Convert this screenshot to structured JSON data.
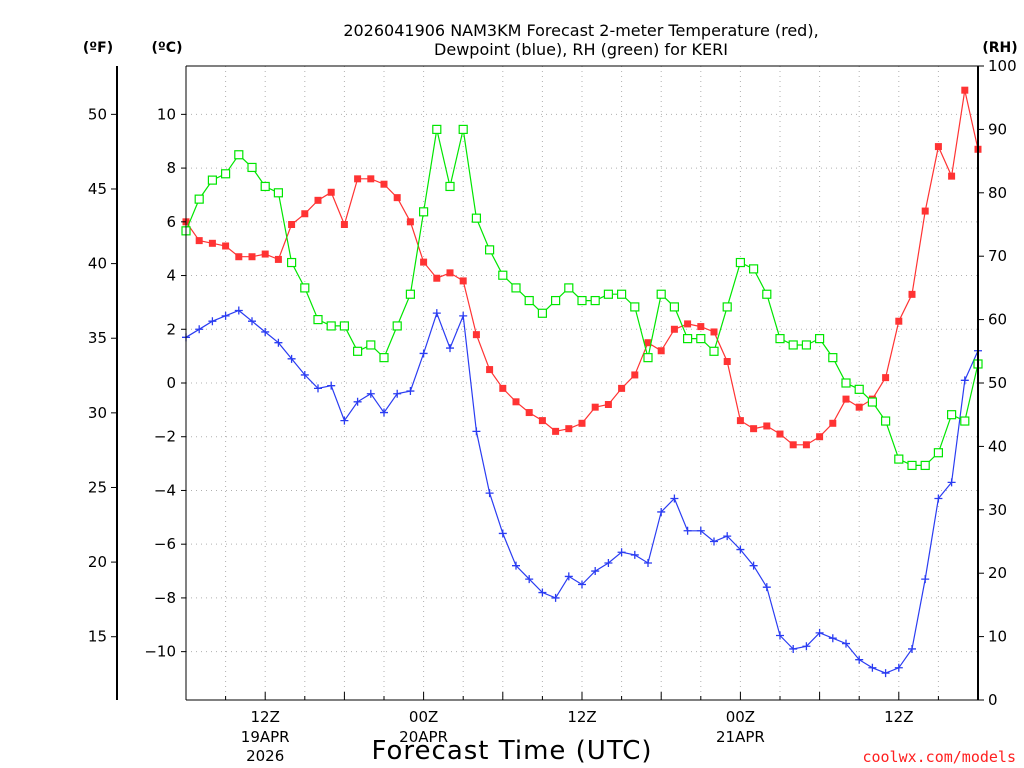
{
  "colors": {
    "temperature": "#ff3333",
    "dewpoint": "#2a3cf2",
    "rh": "#00e600",
    "grid": "#b0b0b0",
    "axis": "#000000"
  },
  "chart_data": {
    "type": "line",
    "title_line1": "2026041906 NAM3KM Forecast 2-meter Temperature (red),",
    "title_line2": "Dewpoint (blue), RH (green) for KERI",
    "unit_f": "(ºF)",
    "unit_c": "(ºC)",
    "unit_rh": "(RH)",
    "xlabel": "Forecast Time (UTC)",
    "credit": "coolwx.com/models",
    "x_range_hours": [
      0,
      60
    ],
    "x_ticks": [
      {
        "hour": 6,
        "label": "12Z",
        "date": "19APR",
        "year": "2026"
      },
      {
        "hour": 18,
        "label": "00Z",
        "date": "20APR",
        "year": ""
      },
      {
        "hour": 30,
        "label": "12Z",
        "date": "",
        "year": ""
      },
      {
        "hour": 42,
        "label": "00Z",
        "date": "21APR",
        "year": ""
      },
      {
        "hour": 54,
        "label": "12Z",
        "date": "",
        "year": ""
      }
    ],
    "celsius_axis": {
      "range": [
        -11.8,
        11.8
      ],
      "ticks": [
        -10,
        -8,
        -6,
        -4,
        -2,
        0,
        2,
        4,
        6,
        8,
        10
      ],
      "tick_labels": [
        "−10",
        "−8",
        "−6",
        "−4",
        "−2",
        "0",
        "2",
        "4",
        "6",
        "8",
        "10"
      ]
    },
    "fahrenheit_axis": {
      "ticks": [
        15,
        20,
        25,
        30,
        35,
        40,
        45,
        50
      ],
      "tick_labels": [
        "15",
        "20",
        "25",
        "30",
        "35",
        "40",
        "45",
        "50"
      ]
    },
    "rh_axis": {
      "range": [
        0,
        100
      ],
      "ticks": [
        0,
        10,
        20,
        30,
        40,
        50,
        60,
        70,
        80,
        90,
        100
      ],
      "tick_labels": [
        "0",
        "10",
        "20",
        "30",
        "40",
        "50",
        "60",
        "70",
        "80",
        "90",
        "100"
      ]
    },
    "series": [
      {
        "name": "Temperature",
        "unit": "C",
        "marker": "filled-square",
        "values": [
          6.0,
          5.3,
          5.2,
          5.1,
          4.7,
          4.7,
          4.8,
          4.6,
          5.9,
          6.3,
          6.8,
          7.1,
          5.9,
          7.6,
          7.6,
          7.4,
          6.9,
          6.0,
          4.5,
          3.9,
          4.1,
          3.8,
          1.8,
          0.5,
          -0.2,
          -0.7,
          -1.1,
          -1.4,
          -1.8,
          -1.7,
          -1.5,
          -0.9,
          -0.8,
          -0.2,
          0.3,
          1.5,
          1.2,
          2.0,
          2.2,
          2.1,
          1.9,
          0.8,
          -1.4,
          -1.7,
          -1.6,
          -1.9,
          -2.3,
          -2.3,
          -2.0,
          -1.5,
          -0.6,
          -0.9,
          -0.6,
          0.2,
          2.3,
          3.3,
          6.4,
          8.8,
          7.7,
          10.9,
          8.7
        ]
      },
      {
        "name": "Dewpoint",
        "unit": "C",
        "marker": "plus",
        "values": [
          1.7,
          2.0,
          2.3,
          2.5,
          2.7,
          2.3,
          1.9,
          1.5,
          0.9,
          0.3,
          -0.2,
          -0.1,
          -1.4,
          -0.7,
          -0.4,
          -1.1,
          -0.4,
          -0.3,
          1.1,
          2.6,
          1.3,
          2.5,
          -1.8,
          -4.1,
          -5.6,
          -6.8,
          -7.3,
          -7.8,
          -8.0,
          -7.2,
          -7.5,
          -7.0,
          -6.7,
          -6.3,
          -6.4,
          -6.7,
          -4.8,
          -4.3,
          -5.5,
          -5.5,
          -5.9,
          -5.7,
          -6.2,
          -6.8,
          -7.6,
          -9.4,
          -9.9,
          -9.8,
          -9.3,
          -9.5,
          -9.7,
          -10.3,
          -10.6,
          -10.8,
          -10.6,
          -9.9,
          -7.3,
          -4.3,
          -3.7,
          0.1,
          1.2
        ]
      },
      {
        "name": "RH",
        "unit": "%",
        "marker": "open-square",
        "values": [
          74,
          79,
          82,
          83,
          86,
          84,
          81,
          80,
          69,
          65,
          60,
          59,
          59,
          55,
          56,
          54,
          59,
          64,
          77,
          90,
          81,
          90,
          76,
          71,
          67,
          65,
          63,
          61,
          63,
          65,
          63,
          63,
          64,
          64,
          62,
          54,
          64,
          62,
          57,
          57,
          55,
          62,
          69,
          68,
          64,
          57,
          56,
          56,
          57,
          54,
          50,
          49,
          47,
          44,
          38,
          37,
          37,
          39,
          45,
          44,
          53
        ]
      }
    ]
  }
}
